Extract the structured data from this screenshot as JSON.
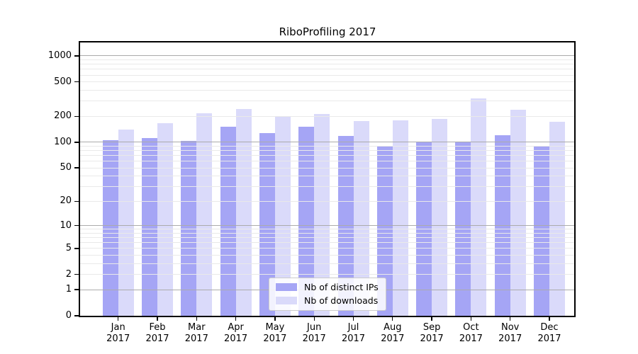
{
  "title": "RiboProfiling 2017",
  "colors": {
    "distinct_ips_bar": "#a5a5f5",
    "downloads_bar": "#dadafa",
    "grid_minor": "#e9e9e9",
    "grid_major": "#ababab",
    "axis": "#000000",
    "legend_border": "#cccccc"
  },
  "chart_data": {
    "type": "bar",
    "title": "RiboProfiling 2017",
    "categories": [
      "Jan",
      "Feb",
      "Mar",
      "Apr",
      "May",
      "Jun",
      "Jul",
      "Aug",
      "Sep",
      "Oct",
      "Nov",
      "Dec"
    ],
    "year": "2017",
    "series": [
      {
        "name": "Nb of distinct IPs",
        "color": "#a5a5f5",
        "values": [
          105,
          111,
          103,
          150,
          128,
          151,
          118,
          91,
          101,
          101,
          121,
          91
        ]
      },
      {
        "name": "Nb of downloads",
        "color": "#dadafa",
        "values": [
          140,
          167,
          216,
          244,
          201,
          214,
          175,
          178,
          186,
          320,
          240,
          174
        ]
      }
    ],
    "yticks": [
      0,
      1,
      2,
      5,
      10,
      20,
      50,
      100,
      200,
      500,
      1000
    ],
    "scale": "log1p",
    "ylim": [
      0,
      1430
    ],
    "grid": "horizontal; minor lines at 2-9 per decade, major at powers of 10",
    "legend_position": "lower center"
  }
}
